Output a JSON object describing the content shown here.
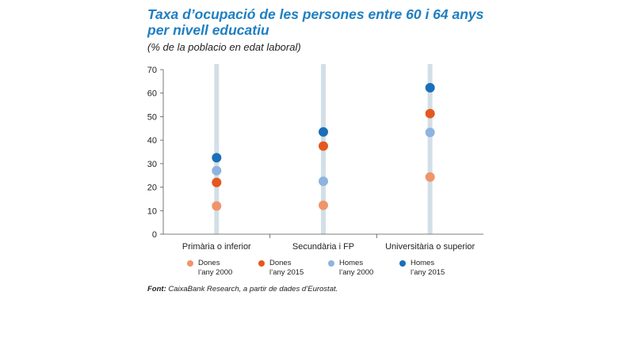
{
  "header": {
    "title_line1": "Taxa d’ocupació  de les persones entre 60 i 64 anys",
    "title_line2": "per nivell educatiu",
    "subtitle": "(% de la poblacio en edat laboral)"
  },
  "source": {
    "label": "Font:",
    "text": "CaixaBank Research, a  partir de dades d’Eurostat."
  },
  "colors": {
    "dones_2000": "#f0956a",
    "dones_2015": "#e4581f",
    "homes_2000": "#8fb3df",
    "homes_2015": "#1a6fba",
    "bar": "#d3dfe7",
    "axis": "#555555",
    "title": "#1f7fc1"
  },
  "chart_data": {
    "type": "scatter",
    "categories": [
      "Primària  o inferior",
      "Secundària i FP",
      "Universitària  o superior"
    ],
    "yticks": [
      "0",
      "10",
      "20",
      "30",
      "40",
      "50",
      "60",
      "70"
    ],
    "ylim": [
      0,
      70
    ],
    "series": [
      {
        "key": "dones_2000",
        "name_line1": "Dones",
        "name_line2": "l’any 2000",
        "values": [
          12,
          12.3,
          24.3
        ]
      },
      {
        "key": "dones_2015",
        "name_line1": "Dones",
        "name_line2": "l’any 2015",
        "values": [
          22,
          37.5,
          51.3
        ]
      },
      {
        "key": "homes_2000",
        "name_line1": "Homes",
        "name_line2": "l’any 2000",
        "values": [
          27,
          22.5,
          43.3
        ]
      },
      {
        "key": "homes_2015",
        "name_line1": "Homes",
        "name_line2": "l’any 2015",
        "values": [
          32.5,
          43.5,
          62.3
        ]
      }
    ]
  }
}
